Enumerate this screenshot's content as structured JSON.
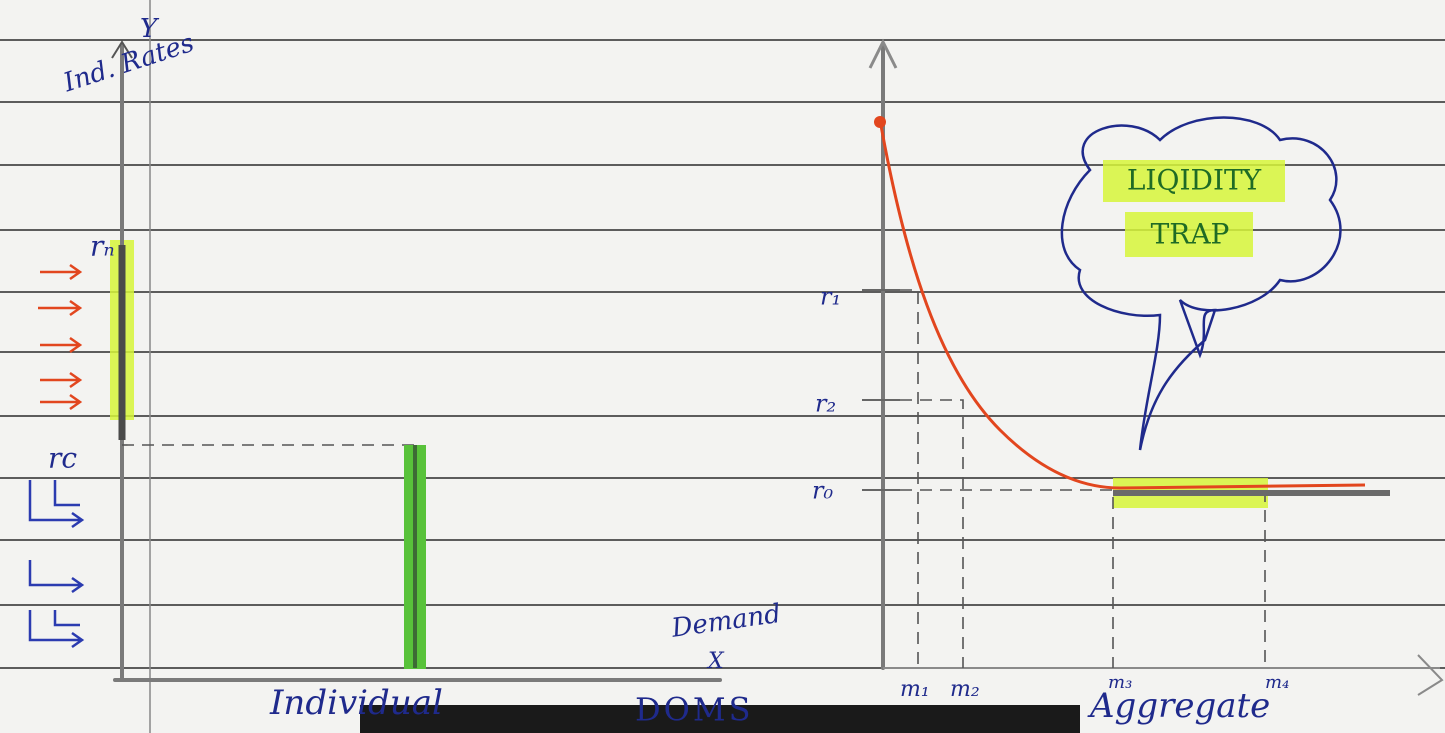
{
  "left_panel": {
    "y_axis_label": "Y",
    "y_axis_title": "Ind. Rates",
    "rate_labels": [
      "rₙ",
      "rc"
    ],
    "x_axis_title": "Demand",
    "x_axis_label": "X",
    "caption": "Individual"
  },
  "footer": "DOMS",
  "right_panel": {
    "rate_labels": [
      "r₁",
      "r₂",
      "r₀"
    ],
    "money_labels": [
      "m₁",
      "m₂",
      "m₃",
      "m₄"
    ],
    "caption": "Aggregate",
    "callout": [
      "LIQIDITY",
      "TRAP"
    ]
  }
}
